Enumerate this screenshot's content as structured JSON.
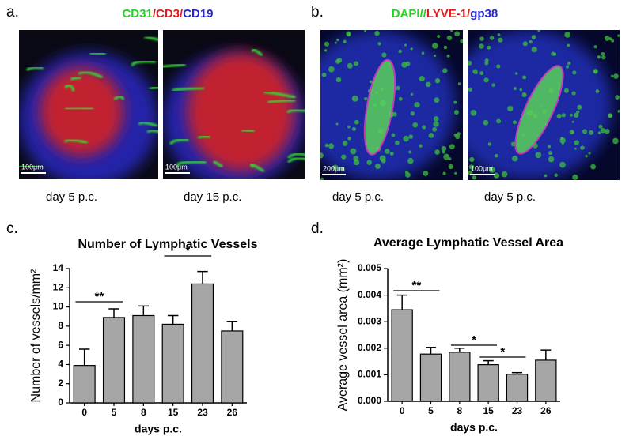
{
  "panels": [
    {
      "label": "a.",
      "title": [
        {
          "text": "CD31",
          "color": "#22d322"
        },
        {
          "text": "/CD3/",
          "color": "#e01b1b"
        },
        {
          "text": "CD19",
          "color": "#2424d8"
        }
      ],
      "images": [
        {
          "scale": "100μm",
          "caption": "day 5 p.c."
        },
        {
          "scale": "100μm",
          "caption": "day 15 p.c."
        }
      ]
    },
    {
      "label": "b.",
      "title": [
        {
          "text": "DAPI//",
          "color": "#22d322"
        },
        {
          "text": "LYVE-1/",
          "color": "#e01b1b"
        },
        {
          "text": "gp38",
          "color": "#2424d8"
        }
      ],
      "images": [
        {
          "scale": "200μm",
          "caption": "day 5 p.c."
        },
        {
          "scale": "100μm",
          "caption": "day 5 p.c."
        }
      ]
    },
    {
      "label": "c."
    },
    {
      "label": "d."
    }
  ],
  "chart_data": [
    {
      "type": "bar",
      "title": "Number of Lymphatic Vessels",
      "y_label": "Number of vessels/mm²",
      "x_label": "days p.c.",
      "categories": [
        "0",
        "5",
        "8",
        "15",
        "23",
        "26"
      ],
      "values": [
        3.9,
        8.9,
        9.1,
        8.2,
        12.4,
        7.5
      ],
      "errors": [
        1.7,
        0.9,
        1.0,
        0.9,
        1.3,
        1.0
      ],
      "color": "#a6a6a6",
      "ylim": [
        0,
        14
      ],
      "yticks": [
        0,
        2,
        4,
        6,
        8,
        10,
        12,
        14
      ],
      "annotations": [
        "**",
        "*"
      ]
    },
    {
      "type": "bar",
      "title": "Average Lymphatic Vessel Area",
      "y_label": "Average vessel area (mm²)",
      "x_label": "days p.c.",
      "categories": [
        "0",
        "5",
        "8",
        "15",
        "23",
        "26"
      ],
      "values": [
        0.00345,
        0.00178,
        0.00185,
        0.00138,
        0.00102,
        0.00155
      ],
      "errors": [
        0.00055,
        0.00025,
        0.00015,
        0.00015,
        6e-05,
        0.00038
      ],
      "color": "#a6a6a6",
      "ylim": [
        0,
        0.005
      ],
      "yticks": [
        {
          "value": 0,
          "label": "0.000"
        },
        {
          "value": 0.001,
          "label": "0.001"
        },
        {
          "value": 0.002,
          "label": "0.002"
        },
        {
          "value": 0.003,
          "label": "0.003"
        },
        {
          "value": 0.004,
          "label": "0.004"
        },
        {
          "value": 0.005,
          "label": "0.005"
        }
      ],
      "annotations": [
        "**",
        "*",
        "*"
      ]
    }
  ]
}
